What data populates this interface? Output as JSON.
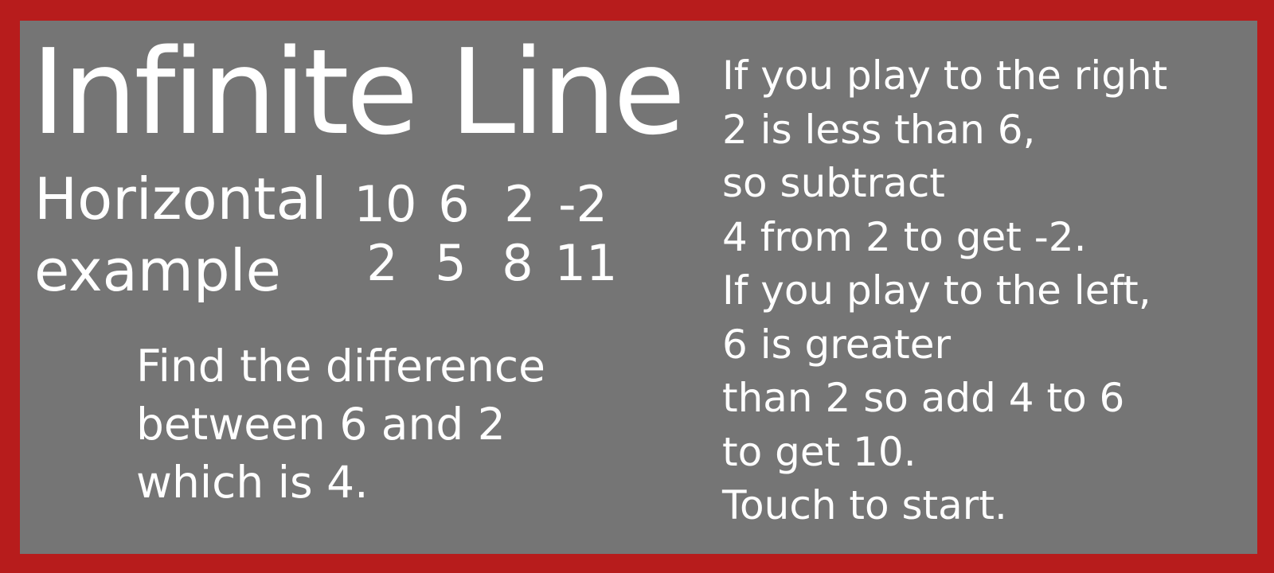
{
  "title": "Infinite Line",
  "rows": {
    "horizontal_label": "Horizontal",
    "example_label": "example",
    "horizontal_values": [
      "10",
      "6",
      "2",
      "-2"
    ],
    "example_values": [
      "2",
      "5",
      "8",
      "11"
    ]
  },
  "find_text": [
    "Find the difference",
    "between 6 and 2",
    "which is 4."
  ],
  "instructions": [
    "If you play to the right",
    "2 is less than 6,",
    "so subtract",
    "4 from 2 to get -2.",
    "If you play to the left,",
    "6 is greater",
    "than 2 so add 4 to 6",
    "to get 10.",
    "Touch to start."
  ],
  "colors": {
    "border": "#b71c1c",
    "panel": "#757575",
    "text": "#ffffff"
  }
}
